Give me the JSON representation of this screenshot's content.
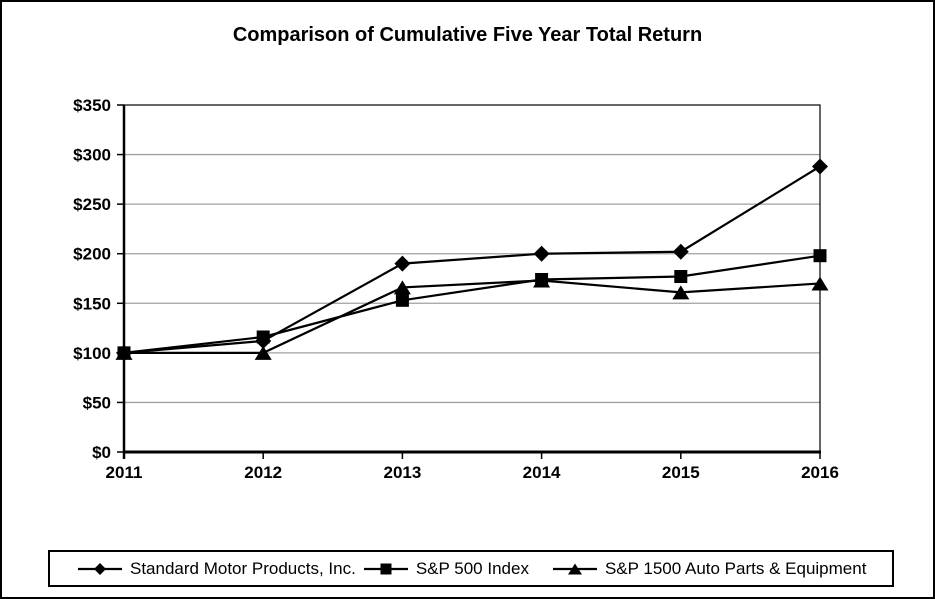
{
  "chart_data": {
    "type": "line",
    "title": "Comparison of Cumulative Five Year Total Return",
    "categories": [
      "2011",
      "2012",
      "2013",
      "2014",
      "2015",
      "2016"
    ],
    "series": [
      {
        "name": "Standard Motor Products, Inc.",
        "marker": "diamond",
        "values": [
          100,
          112,
          190,
          200,
          202,
          288
        ]
      },
      {
        "name": "S&P 500 Index",
        "marker": "square",
        "values": [
          100,
          116,
          153,
          174,
          177,
          198
        ]
      },
      {
        "name": "S&P 1500 Auto Parts & Equipment",
        "marker": "triangle",
        "values": [
          100,
          100,
          166,
          173,
          161,
          170
        ]
      }
    ],
    "ylim": [
      0,
      350
    ],
    "y_tick_step": 50,
    "y_tick_labels": [
      "$0",
      "$50",
      "$100",
      "$150",
      "$200",
      "$250",
      "$300",
      "$350"
    ],
    "xlabel": "",
    "ylabel": "",
    "grid": "horizontal",
    "legend_position": "bottom",
    "colors": {
      "line": "#000000",
      "marker": "#000000",
      "gridline": "#a0a0a0",
      "axis": "#000000",
      "text": "#000000",
      "background": "#ffffff"
    }
  }
}
